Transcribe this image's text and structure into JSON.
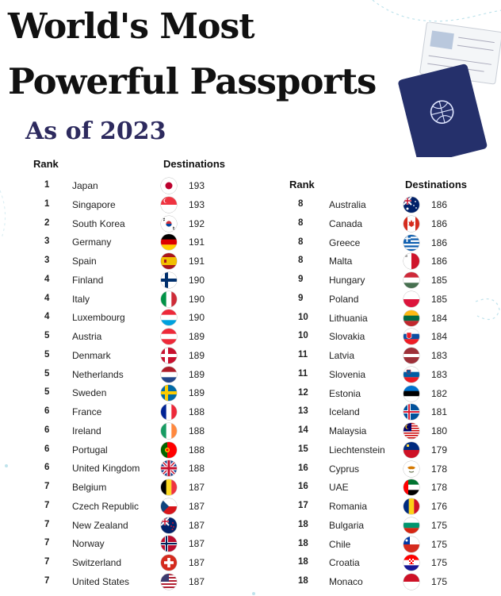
{
  "title_line1": "World's Most",
  "title_line2": "Powerful Passports",
  "subtitle": "As of 2023",
  "headers": {
    "rank": "Rank",
    "destinations": "Destinations"
  },
  "left_rows": [
    {
      "rank": "1",
      "country": "Japan",
      "destinations": "193",
      "flag": "japan-flag-icon"
    },
    {
      "rank": "1",
      "country": "Singapore",
      "destinations": "193",
      "flag": "singapore-flag-icon"
    },
    {
      "rank": "2",
      "country": "South Korea",
      "destinations": "192",
      "flag": "south-korea-flag-icon"
    },
    {
      "rank": "3",
      "country": "Germany",
      "destinations": "191",
      "flag": "germany-flag-icon"
    },
    {
      "rank": "3",
      "country": "Spain",
      "destinations": "191",
      "flag": "spain-flag-icon"
    },
    {
      "rank": "4",
      "country": "Finland",
      "destinations": "190",
      "flag": "finland-flag-icon"
    },
    {
      "rank": "4",
      "country": "Italy",
      "destinations": "190",
      "flag": "italy-flag-icon"
    },
    {
      "rank": "4",
      "country": "Luxembourg",
      "destinations": "190",
      "flag": "luxembourg-flag-icon"
    },
    {
      "rank": "5",
      "country": "Austria",
      "destinations": "189",
      "flag": "austria-flag-icon"
    },
    {
      "rank": "5",
      "country": "Denmark",
      "destinations": "189",
      "flag": "denmark-flag-icon"
    },
    {
      "rank": "5",
      "country": "Netherlands",
      "destinations": "189",
      "flag": "netherlands-flag-icon"
    },
    {
      "rank": "5",
      "country": "Sweden",
      "destinations": "189",
      "flag": "sweden-flag-icon"
    },
    {
      "rank": "6",
      "country": "France",
      "destinations": "188",
      "flag": "france-flag-icon"
    },
    {
      "rank": "6",
      "country": "Ireland",
      "destinations": "188",
      "flag": "ireland-flag-icon"
    },
    {
      "rank": "6",
      "country": "Portugal",
      "destinations": "188",
      "flag": "portugal-flag-icon"
    },
    {
      "rank": "6",
      "country": "United Kingdom",
      "destinations": "188",
      "flag": "uk-flag-icon"
    },
    {
      "rank": "7",
      "country": "Belgium",
      "destinations": "187",
      "flag": "belgium-flag-icon"
    },
    {
      "rank": "7",
      "country": "Czech Republic",
      "destinations": "187",
      "flag": "czech-flag-icon"
    },
    {
      "rank": "7",
      "country": "New Zealand",
      "destinations": "187",
      "flag": "new-zealand-flag-icon"
    },
    {
      "rank": "7",
      "country": "Norway",
      "destinations": "187",
      "flag": "norway-flag-icon"
    },
    {
      "rank": "7",
      "country": "Switzerland",
      "destinations": "187",
      "flag": "switzerland-flag-icon"
    },
    {
      "rank": "7",
      "country": "United States",
      "destinations": "187",
      "flag": "usa-flag-icon"
    }
  ],
  "right_rows": [
    {
      "rank": "8",
      "country": "Australia",
      "destinations": "186",
      "flag": "australia-flag-icon"
    },
    {
      "rank": "8",
      "country": "Canada",
      "destinations": "186",
      "flag": "canada-flag-icon"
    },
    {
      "rank": "8",
      "country": "Greece",
      "destinations": "186",
      "flag": "greece-flag-icon"
    },
    {
      "rank": "8",
      "country": "Malta",
      "destinations": "186",
      "flag": "malta-flag-icon"
    },
    {
      "rank": "9",
      "country": "Hungary",
      "destinations": "185",
      "flag": "hungary-flag-icon"
    },
    {
      "rank": "9",
      "country": "Poland",
      "destinations": "185",
      "flag": "poland-flag-icon"
    },
    {
      "rank": "10",
      "country": "Lithuania",
      "destinations": "184",
      "flag": "lithuania-flag-icon"
    },
    {
      "rank": "10",
      "country": "Slovakia",
      "destinations": "184",
      "flag": "slovakia-flag-icon"
    },
    {
      "rank": "11",
      "country": "Latvia",
      "destinations": "183",
      "flag": "latvia-flag-icon"
    },
    {
      "rank": "11",
      "country": "Slovenia",
      "destinations": "183",
      "flag": "slovenia-flag-icon"
    },
    {
      "rank": "12",
      "country": "Estonia",
      "destinations": "182",
      "flag": "estonia-flag-icon"
    },
    {
      "rank": "13",
      "country": "Iceland",
      "destinations": "181",
      "flag": "iceland-flag-icon"
    },
    {
      "rank": "14",
      "country": "Malaysia",
      "destinations": "180",
      "flag": "malaysia-flag-icon"
    },
    {
      "rank": "15",
      "country": "Liechtenstein",
      "destinations": "179",
      "flag": "liechtenstein-flag-icon"
    },
    {
      "rank": "16",
      "country": "Cyprus",
      "destinations": "178",
      "flag": "cyprus-flag-icon"
    },
    {
      "rank": "16",
      "country": "UAE",
      "destinations": "178",
      "flag": "uae-flag-icon"
    },
    {
      "rank": "17",
      "country": "Romania",
      "destinations": "176",
      "flag": "romania-flag-icon"
    },
    {
      "rank": "18",
      "country": "Bulgaria",
      "destinations": "175",
      "flag": "bulgaria-flag-icon"
    },
    {
      "rank": "18",
      "country": "Chile",
      "destinations": "175",
      "flag": "chile-flag-icon"
    },
    {
      "rank": "18",
      "country": "Croatia",
      "destinations": "175",
      "flag": "croatia-flag-icon"
    },
    {
      "rank": "18",
      "country": "Monaco",
      "destinations": "175",
      "flag": "monaco-flag-icon"
    }
  ],
  "colors": {
    "title": "#111111",
    "subtitle": "#2d2a5e",
    "passport": "#25306b"
  }
}
